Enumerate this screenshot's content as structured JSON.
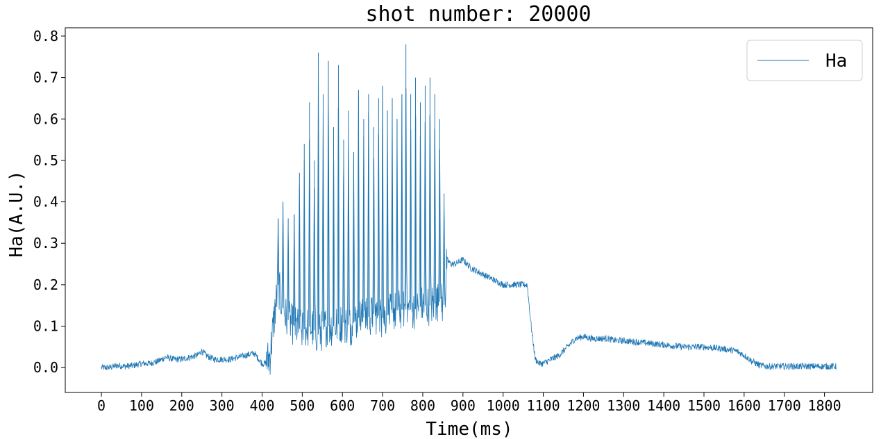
{
  "chart_data": {
    "type": "line",
    "title": "shot number: 20000",
    "xlabel": "Time(ms)",
    "ylabel": "Ha(A.U.)",
    "xlim": [
      -90,
      1920
    ],
    "ylim": [
      -0.06,
      0.82
    ],
    "xticks": [
      0,
      100,
      200,
      300,
      400,
      500,
      600,
      700,
      800,
      900,
      1000,
      1100,
      1200,
      1300,
      1400,
      1500,
      1600,
      1700,
      1800
    ],
    "yticks": [
      0.0,
      0.1,
      0.2,
      0.3,
      0.4,
      0.5,
      0.6,
      0.7,
      0.8
    ],
    "xtick_labels": [
      "0",
      "100",
      "200",
      "300",
      "400",
      "500",
      "600",
      "700",
      "800",
      "900",
      "1000",
      "1100",
      "1200",
      "1300",
      "1400",
      "1500",
      "1600",
      "1700",
      "1800"
    ],
    "ytick_labels": [
      "0.0",
      "0.1",
      "0.2",
      "0.3",
      "0.4",
      "0.5",
      "0.6",
      "0.7",
      "0.8"
    ],
    "grid": false,
    "legend_position": "top-right",
    "series": [
      {
        "name": "Ha",
        "color": "#1f77b4",
        "x": [
          0,
          20,
          40,
          60,
          80,
          100,
          120,
          140,
          160,
          180,
          200,
          220,
          240,
          250,
          260,
          280,
          300,
          320,
          340,
          360,
          380,
          400,
          410,
          420,
          430,
          440,
          450,
          460,
          480,
          500,
          520,
          540,
          560,
          580,
          600,
          620,
          640,
          660,
          680,
          700,
          720,
          740,
          760,
          780,
          800,
          820,
          840,
          855,
          860,
          870,
          880,
          900,
          920,
          940,
          960,
          980,
          1000,
          1020,
          1040,
          1060,
          1070,
          1080,
          1090,
          1100,
          1120,
          1140,
          1160,
          1180,
          1200,
          1220,
          1240,
          1260,
          1280,
          1300,
          1350,
          1400,
          1450,
          1500,
          1550,
          1580,
          1600,
          1620,
          1640,
          1660,
          1680,
          1700,
          1750,
          1800,
          1830
        ],
        "y": [
          0.0,
          0.0,
          0.005,
          0.003,
          0.005,
          0.01,
          0.01,
          0.015,
          0.025,
          0.02,
          0.02,
          0.025,
          0.03,
          0.04,
          0.03,
          0.02,
          0.02,
          0.02,
          0.025,
          0.03,
          0.035,
          0.01,
          0.01,
          0.03,
          0.12,
          0.2,
          0.15,
          0.12,
          0.1,
          0.09,
          0.1,
          0.08,
          0.1,
          0.1,
          0.11,
          0.1,
          0.12,
          0.12,
          0.13,
          0.12,
          0.13,
          0.14,
          0.14,
          0.14,
          0.15,
          0.15,
          0.16,
          0.15,
          0.26,
          0.25,
          0.25,
          0.26,
          0.24,
          0.23,
          0.22,
          0.21,
          0.2,
          0.2,
          0.2,
          0.2,
          0.1,
          0.02,
          0.01,
          0.01,
          0.02,
          0.03,
          0.05,
          0.07,
          0.075,
          0.07,
          0.07,
          0.07,
          0.065,
          0.065,
          0.06,
          0.055,
          0.05,
          0.05,
          0.045,
          0.04,
          0.03,
          0.015,
          0.005,
          0.003,
          0.003,
          0.003,
          0.003,
          0.003,
          0.003
        ]
      }
    ],
    "spikes": [
      {
        "x": 440,
        "y": 0.36
      },
      {
        "x": 452,
        "y": 0.4
      },
      {
        "x": 465,
        "y": 0.36
      },
      {
        "x": 480,
        "y": 0.37
      },
      {
        "x": 493,
        "y": 0.47
      },
      {
        "x": 505,
        "y": 0.54
      },
      {
        "x": 518,
        "y": 0.64
      },
      {
        "x": 530,
        "y": 0.5
      },
      {
        "x": 540,
        "y": 0.76
      },
      {
        "x": 552,
        "y": 0.66
      },
      {
        "x": 565,
        "y": 0.74
      },
      {
        "x": 578,
        "y": 0.58
      },
      {
        "x": 590,
        "y": 0.73
      },
      {
        "x": 603,
        "y": 0.55
      },
      {
        "x": 615,
        "y": 0.62
      },
      {
        "x": 628,
        "y": 0.52
      },
      {
        "x": 640,
        "y": 0.67
      },
      {
        "x": 653,
        "y": 0.6
      },
      {
        "x": 665,
        "y": 0.66
      },
      {
        "x": 678,
        "y": 0.58
      },
      {
        "x": 690,
        "y": 0.65
      },
      {
        "x": 700,
        "y": 0.68
      },
      {
        "x": 712,
        "y": 0.62
      },
      {
        "x": 724,
        "y": 0.65
      },
      {
        "x": 736,
        "y": 0.6
      },
      {
        "x": 748,
        "y": 0.66
      },
      {
        "x": 758,
        "y": 0.78
      },
      {
        "x": 770,
        "y": 0.66
      },
      {
        "x": 782,
        "y": 0.7
      },
      {
        "x": 794,
        "y": 0.64
      },
      {
        "x": 806,
        "y": 0.68
      },
      {
        "x": 818,
        "y": 0.7
      },
      {
        "x": 830,
        "y": 0.66
      },
      {
        "x": 842,
        "y": 0.6
      },
      {
        "x": 853,
        "y": 0.42
      }
    ]
  }
}
